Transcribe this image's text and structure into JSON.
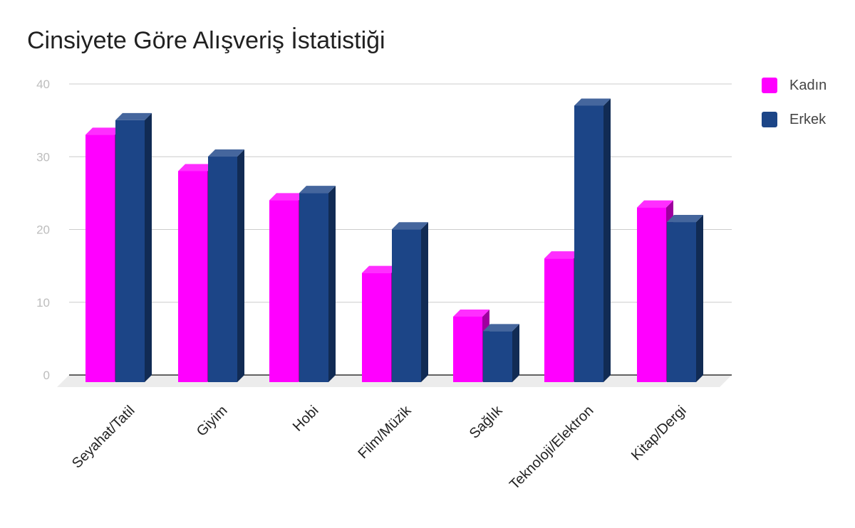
{
  "chart_data": {
    "type": "bar",
    "title": "Cinsiyete Göre Alışveriş İstatistiği",
    "categories": [
      "Seyahat/Tatil",
      "Giyim",
      "Hobi",
      "Film/Müzik",
      "Sağlık",
      "Teknoloji/Elektron",
      "Kitap/Dergi"
    ],
    "series": [
      {
        "name": "Kadın",
        "values": [
          34,
          29,
          25,
          15,
          9,
          17,
          24
        ],
        "color": "#ff00ff"
      },
      {
        "name": "Erkek",
        "values": [
          36,
          31,
          26,
          21,
          7,
          38,
          22
        ],
        "color": "#1c4587"
      }
    ],
    "yticks": [
      0,
      10,
      20,
      30,
      40
    ],
    "ylim": [
      0,
      40
    ],
    "grid": true,
    "legend_position": "right",
    "style": "3d-column"
  }
}
